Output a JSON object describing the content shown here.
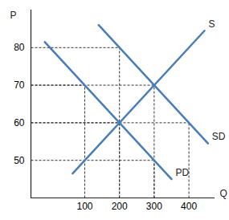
{
  "chart_data": {
    "type": "line",
    "x_label": "Q",
    "y_label": "P",
    "xlim": [
      -55,
      475
    ],
    "ylim": [
      40,
      90
    ],
    "xticks": [
      100,
      200,
      300,
      400
    ],
    "yticks": [
      50,
      60,
      70,
      80
    ],
    "series": [
      {
        "name": "S",
        "color": "#4a7db3",
        "x": [
          65,
          445
        ],
        "values": [
          46.5,
          84.5
        ]
      },
      {
        "name": "SD",
        "color": "#4a7db3",
        "x": [
          140,
          455
        ],
        "values": [
          86,
          54.5
        ]
      },
      {
        "name": "PD",
        "color": "#4a7db3",
        "x": [
          -15,
          350
        ],
        "values": [
          81.5,
          45
        ]
      }
    ],
    "guide_points": {
      "x": [
        200,
        100,
        300,
        200,
        400,
        300
      ],
      "y": [
        80,
        70,
        70,
        60,
        60,
        50
      ]
    }
  }
}
